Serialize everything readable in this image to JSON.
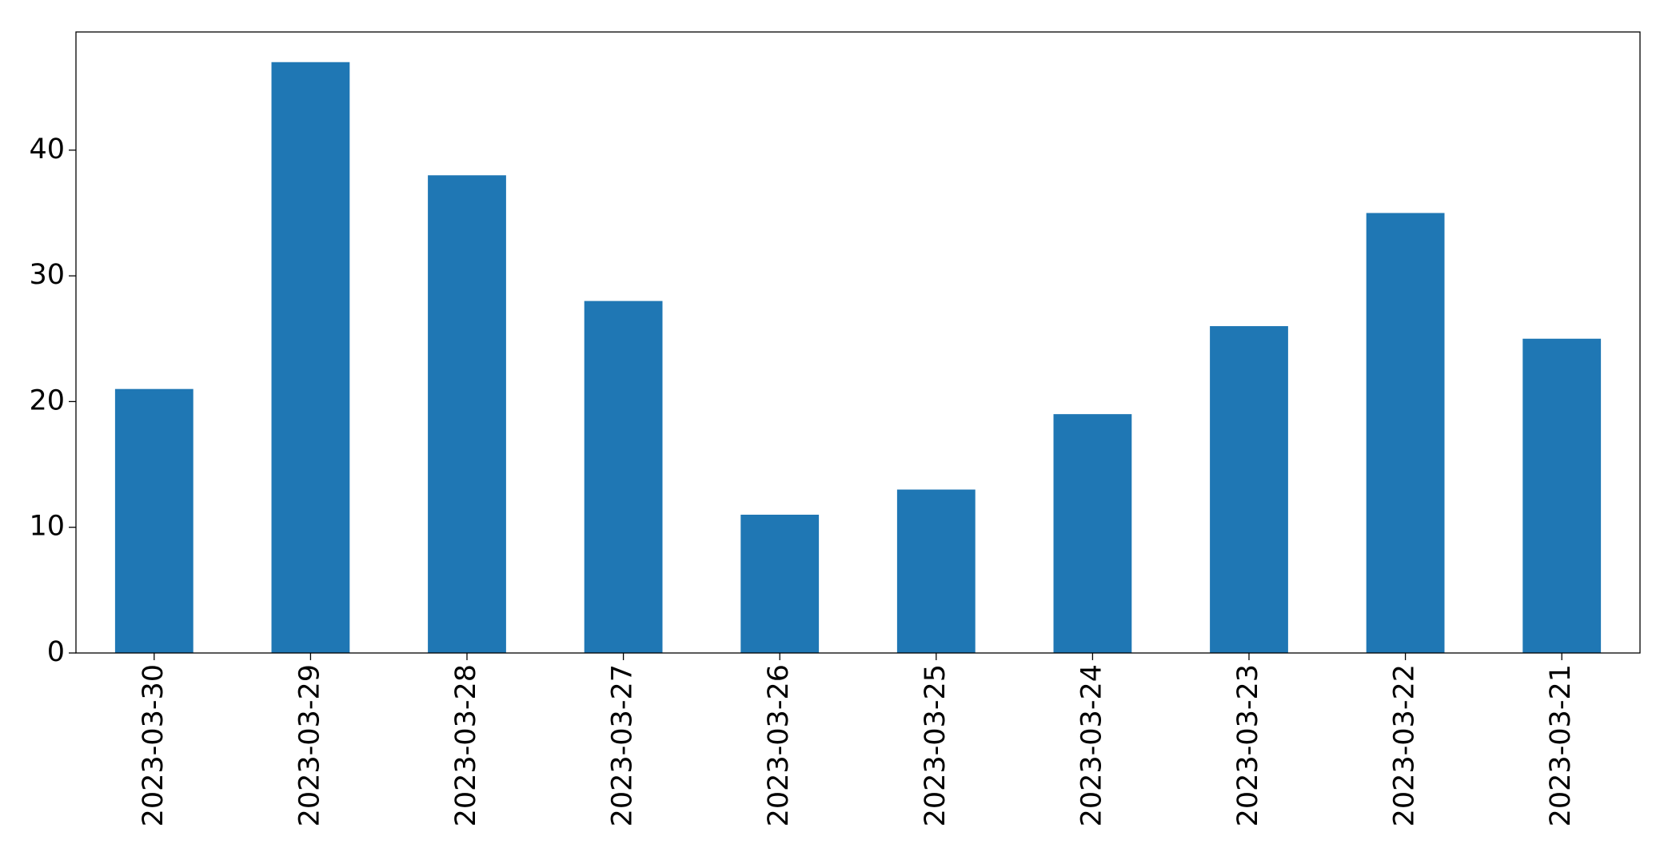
{
  "chart_data": {
    "type": "bar",
    "categories": [
      "2023-03-30",
      "2023-03-29",
      "2023-03-28",
      "2023-03-27",
      "2023-03-26",
      "2023-03-25",
      "2023-03-24",
      "2023-03-23",
      "2023-03-22",
      "2023-03-21"
    ],
    "values": [
      21,
      47,
      38,
      28,
      11,
      13,
      19,
      26,
      35,
      25
    ],
    "color": "#1f77b4",
    "ylim": [
      0,
      49.4
    ],
    "yticks": [
      0,
      10,
      20,
      30,
      40
    ],
    "grid": false
  }
}
